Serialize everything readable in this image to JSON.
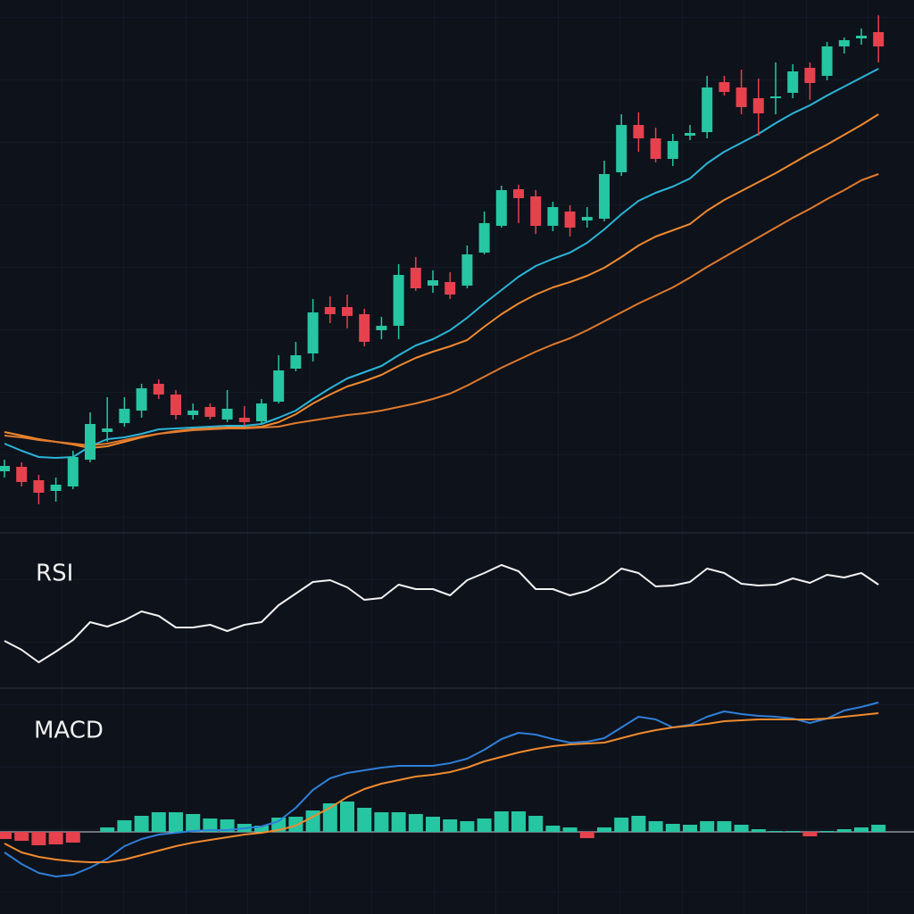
{
  "chart_data": [
    {
      "type": "candlestick",
      "ylim": [
        0,
        580
      ],
      "up_color": "#26c6a2",
      "down_color": "#e5424d",
      "open": [
        52,
        57,
        42,
        30,
        35,
        65,
        96,
        106,
        120,
        150,
        138,
        115,
        124,
        110,
        112,
        108,
        130,
        167,
        184,
        236,
        236,
        228,
        210,
        215,
        280,
        260,
        264,
        260,
        297,
        327,
        368,
        360,
        327,
        343,
        333,
        335,
        387,
        440,
        425,
        402,
        428,
        432,
        488,
        482,
        470,
        470,
        476,
        504,
        495,
        528,
        537,
        544
      ],
      "high": [
        65,
        62,
        48,
        45,
        75,
        118,
        135,
        135,
        150,
        155,
        143,
        128,
        128,
        143,
        125,
        133,
        182,
        197,
        245,
        248,
        250,
        234,
        225,
        284,
        292,
        277,
        275,
        305,
        343,
        372,
        373,
        367,
        354,
        350,
        348,
        400,
        452,
        454,
        437,
        430,
        440,
        495,
        495,
        502,
        492,
        510,
        508,
        510,
        533,
        538,
        548,
        563
      ],
      "low": [
        45,
        35,
        15,
        18,
        32,
        62,
        85,
        102,
        112,
        133,
        110,
        110,
        110,
        107,
        103,
        105,
        128,
        164,
        175,
        218,
        212,
        192,
        200,
        200,
        254,
        252,
        245,
        257,
        295,
        325,
        330,
        318,
        321,
        315,
        325,
        332,
        383,
        410,
        398,
        394,
        423,
        425,
        473,
        452,
        428,
        452,
        470,
        468,
        490,
        520,
        530,
        510
      ],
      "close": [
        58,
        40,
        28,
        37,
        68,
        105,
        100,
        122,
        145,
        138,
        115,
        120,
        113,
        122,
        107,
        128,
        165,
        182,
        230,
        228,
        226,
        197,
        215,
        272,
        257,
        266,
        250,
        295,
        330,
        367,
        358,
        327,
        348,
        325,
        337,
        385,
        440,
        425,
        402,
        422,
        431,
        482,
        477,
        460,
        453,
        472,
        500,
        487,
        528,
        535,
        540,
        528
      ],
      "series": [
        {
          "color": "#2bb5d8",
          "values": [
            83,
            75,
            68,
            67,
            68,
            80,
            88,
            90,
            94,
            99,
            100,
            101,
            102,
            103,
            103,
            105,
            112,
            120,
            133,
            145,
            156,
            163,
            170,
            182,
            193,
            200,
            210,
            224,
            240,
            255,
            270,
            282,
            290,
            297,
            308,
            323,
            340,
            355,
            364,
            371,
            380,
            397,
            410,
            420,
            430,
            442,
            453,
            462,
            473,
            483,
            493,
            503
          ]
        },
        {
          "color": "#f08a2e",
          "values": [
            96,
            92,
            88,
            85,
            82,
            78,
            80,
            85,
            90,
            94,
            97,
            99,
            100,
            101,
            101,
            102,
            107,
            116,
            128,
            138,
            147,
            153,
            160,
            170,
            179,
            186,
            192,
            199,
            214,
            228,
            240,
            250,
            258,
            264,
            271,
            280,
            292,
            305,
            315,
            322,
            329,
            344,
            356,
            366,
            376,
            386,
            397,
            408,
            418,
            429,
            440,
            452
          ]
        },
        {
          "color": "#e07a2c",
          "values": [
            92,
            90,
            87,
            85,
            83,
            81,
            83,
            87,
            91,
            94,
            96,
            98,
            99,
            100,
            100,
            101,
            102,
            106,
            109,
            112,
            115,
            117,
            120,
            124,
            128,
            133,
            139,
            148,
            158,
            168,
            177,
            186,
            194,
            201,
            210,
            220,
            230,
            240,
            249,
            258,
            269,
            281,
            292,
            303,
            314,
            325,
            336,
            346,
            357,
            367,
            378,
            385
          ]
        }
      ]
    },
    {
      "type": "line",
      "title": "RSI",
      "ylim": [
        0,
        172
      ],
      "series": [
        {
          "color": "#f2f2f2",
          "values": [
            52,
            42,
            28,
            40,
            53,
            73,
            68,
            75,
            85,
            80,
            67,
            67,
            70,
            63,
            70,
            73,
            92,
            105,
            118,
            120,
            112,
            98,
            100,
            115,
            110,
            110,
            103,
            120,
            128,
            137,
            130,
            110,
            110,
            103,
            108,
            118,
            133,
            128,
            113,
            114,
            118,
            133,
            128,
            116,
            114,
            115,
            122,
            117,
            126,
            123,
            128,
            115
          ]
        }
      ]
    },
    {
      "type": "macd",
      "title": "MACD",
      "ylim": [
        -92,
        160
      ],
      "bars": {
        "up_color": "#26c6a2",
        "down_color": "#e5424d",
        "values": [
          -8,
          -10,
          -15,
          -14,
          -12,
          0,
          5,
          13,
          18,
          22,
          22,
          20,
          15,
          14,
          9,
          7,
          16,
          17,
          24,
          32,
          34,
          27,
          22,
          22,
          20,
          17,
          14,
          12,
          15,
          23,
          23,
          18,
          7,
          5,
          -7,
          5,
          16,
          18,
          12,
          9,
          8,
          12,
          12,
          8,
          3,
          1,
          1,
          -5,
          1,
          3,
          5,
          8
        ]
      },
      "series": [
        {
          "color": "#2f7fd8",
          "values": [
            -23,
            -36,
            -46,
            -50,
            -48,
            -40,
            -30,
            -16,
            -8,
            -3,
            -1,
            1,
            2,
            2,
            4,
            6,
            12,
            27,
            47,
            60,
            66,
            69,
            72,
            74,
            74,
            74,
            77,
            82,
            92,
            104,
            111,
            109,
            104,
            100,
            101,
            105,
            117,
            129,
            126,
            117,
            120,
            129,
            135,
            132,
            130,
            129,
            127,
            122,
            127,
            136,
            140,
            145
          ]
        },
        {
          "color": "#f08a2e",
          "values": [
            -13,
            -23,
            -28,
            -31,
            -33,
            -34,
            -34,
            -31,
            -26,
            -21,
            -16,
            -12,
            -9,
            -6,
            -3,
            -1,
            2,
            7,
            17,
            27,
            39,
            48,
            54,
            58,
            62,
            64,
            67,
            72,
            79,
            84,
            89,
            93,
            96,
            98,
            99,
            100,
            105,
            110,
            114,
            117,
            119,
            121,
            124,
            125,
            126,
            126,
            126,
            126,
            127,
            129,
            131,
            133
          ]
        }
      ]
    }
  ]
}
